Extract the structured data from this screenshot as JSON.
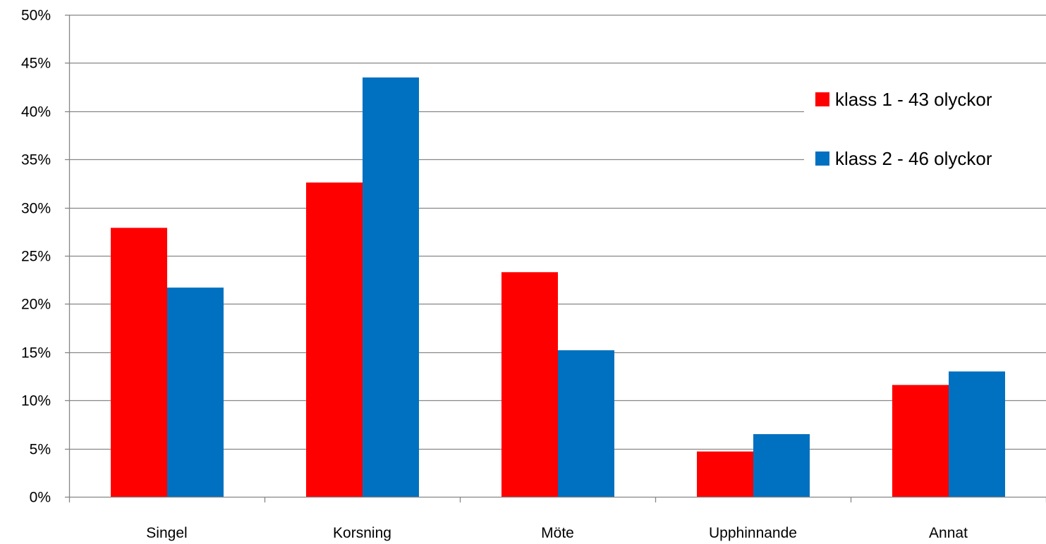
{
  "chart_data": {
    "type": "bar",
    "categories": [
      "Singel",
      "Korsning",
      "Möte",
      "Upphinnande",
      "Annat"
    ],
    "series": [
      {
        "name": "klass 1 - 43 olyckor",
        "color": "#ff0000",
        "values": [
          27.9,
          32.6,
          23.3,
          4.7,
          11.6
        ]
      },
      {
        "name": "klass 2 - 46 olyckor",
        "color": "#0070c0",
        "values": [
          21.7,
          43.5,
          15.2,
          6.5,
          13.0
        ]
      }
    ],
    "y_ticks": [
      "0%",
      "5%",
      "10%",
      "15%",
      "20%",
      "25%",
      "30%",
      "35%",
      "40%",
      "45%",
      "50%"
    ],
    "ylim": [
      0,
      50
    ],
    "grid": true,
    "legend_position": "right",
    "gridline_color": "#868686",
    "axis_color": "#868686"
  }
}
